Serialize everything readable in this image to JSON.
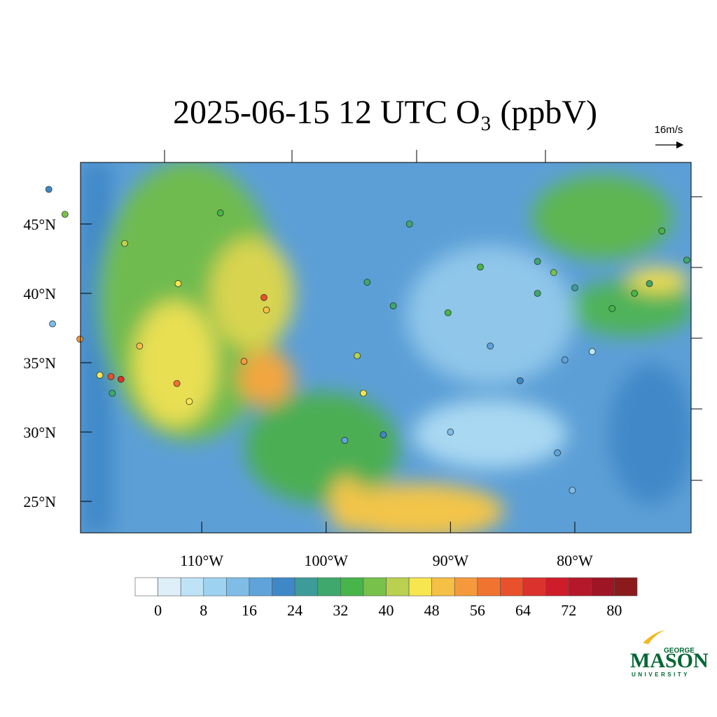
{
  "map": {
    "type": "station-map",
    "title": "2025-06-15 12 UTC O₃ (ppbV)",
    "vector_reference": "16m/s",
    "xlim": [
      -119.75,
      -70.65
    ],
    "ylim": [
      22.73,
      49.44
    ],
    "lon_ticks": [
      {
        "value": -110,
        "label": "110°W"
      },
      {
        "value": -100,
        "label": "100°W"
      },
      {
        "value": -90,
        "label": "90°W"
      },
      {
        "value": -80,
        "label": "80°W"
      }
    ],
    "lat_ticks": [
      {
        "value": 45,
        "label": "45°N"
      },
      {
        "value": 40,
        "label": "40°N"
      },
      {
        "value": 35,
        "label": "35°N"
      },
      {
        "value": 30,
        "label": "30°N"
      },
      {
        "value": 25,
        "label": "25°N"
      }
    ],
    "colorbar": {
      "lim": [
        -4,
        84
      ],
      "ticks": [
        0,
        8,
        16,
        24,
        32,
        40,
        48,
        56,
        64,
        72,
        80
      ],
      "colors": [
        "#ffffff",
        "#deeff9",
        "#bfe3f6",
        "#9dd3f1",
        "#7fbde6",
        "#5fa3da",
        "#3f88c8",
        "#3d9c9a",
        "#3fa86c",
        "#47b54a",
        "#78c14b",
        "#b9d14f",
        "#f7e650",
        "#f6bf45",
        "#f59a3c",
        "#f07430",
        "#e8512c",
        "#dc322d",
        "#cf1c2a",
        "#b5182a",
        "#9e1526",
        "#8a1a1c"
      ]
    },
    "stations": [
      {
        "lon": -122.3,
        "lat": 47.5,
        "value": 20
      },
      {
        "lon": -121,
        "lat": 45.7,
        "value": 36
      },
      {
        "lon": -122,
        "lat": 37.8,
        "value": 14
      },
      {
        "lon": -119.8,
        "lat": 36.7,
        "value": 52
      },
      {
        "lon": -118.2,
        "lat": 34.1,
        "value": 44
      },
      {
        "lon": -117.2,
        "lat": 32.8,
        "value": 30
      },
      {
        "lon": -117.3,
        "lat": 34,
        "value": 62
      },
      {
        "lon": -116.5,
        "lat": 33.8,
        "value": 66
      },
      {
        "lon": -115,
        "lat": 36.2,
        "value": 50
      },
      {
        "lon": -112,
        "lat": 33.5,
        "value": 58
      },
      {
        "lon": -111,
        "lat": 32.2,
        "value": 44
      },
      {
        "lon": -111.9,
        "lat": 40.7,
        "value": 46
      },
      {
        "lon": -105,
        "lat": 39.7,
        "value": 62
      },
      {
        "lon": -106.6,
        "lat": 35.1,
        "value": 56
      },
      {
        "lon": -104.8,
        "lat": 38.8,
        "value": 48
      },
      {
        "lon": -108.5,
        "lat": 45.8,
        "value": 34
      },
      {
        "lon": -116.2,
        "lat": 43.6,
        "value": 40
      },
      {
        "lon": -97.5,
        "lat": 35.5,
        "value": 40
      },
      {
        "lon": -97,
        "lat": 32.8,
        "value": 44
      },
      {
        "lon": -95.4,
        "lat": 29.8,
        "value": 22
      },
      {
        "lon": -98.5,
        "lat": 29.4,
        "value": 16
      },
      {
        "lon": -94.6,
        "lat": 39.1,
        "value": 28
      },
      {
        "lon": -93.3,
        "lat": 45,
        "value": 30
      },
      {
        "lon": -90.2,
        "lat": 38.6,
        "value": 32
      },
      {
        "lon": -87.6,
        "lat": 41.9,
        "value": 34
      },
      {
        "lon": -96.7,
        "lat": 40.8,
        "value": 30
      },
      {
        "lon": -90,
        "lat": 30,
        "value": 12
      },
      {
        "lon": -84.4,
        "lat": 33.7,
        "value": 22
      },
      {
        "lon": -86.8,
        "lat": 36.2,
        "value": 18
      },
      {
        "lon": -83,
        "lat": 40,
        "value": 30
      },
      {
        "lon": -80,
        "lat": 40.4,
        "value": 26
      },
      {
        "lon": -77,
        "lat": 38.9,
        "value": 34
      },
      {
        "lon": -75.2,
        "lat": 40,
        "value": 32
      },
      {
        "lon": -74,
        "lat": 40.7,
        "value": 30
      },
      {
        "lon": -71,
        "lat": 42.4,
        "value": 30
      },
      {
        "lon": -81.7,
        "lat": 41.5,
        "value": 36
      },
      {
        "lon": -80.8,
        "lat": 35.2,
        "value": 16
      },
      {
        "lon": -81.4,
        "lat": 28.5,
        "value": 16
      },
      {
        "lon": -80.2,
        "lat": 25.8,
        "value": 14
      },
      {
        "lon": -78.6,
        "lat": 35.8,
        "value": 6
      },
      {
        "lon": -83,
        "lat": 42.3,
        "value": 28
      },
      {
        "lon": -73,
        "lat": 44.5,
        "value": 34
      }
    ]
  },
  "logo": {
    "top": "GEORGE",
    "middle": "MASON",
    "bottom": "UNIVERSITY"
  }
}
